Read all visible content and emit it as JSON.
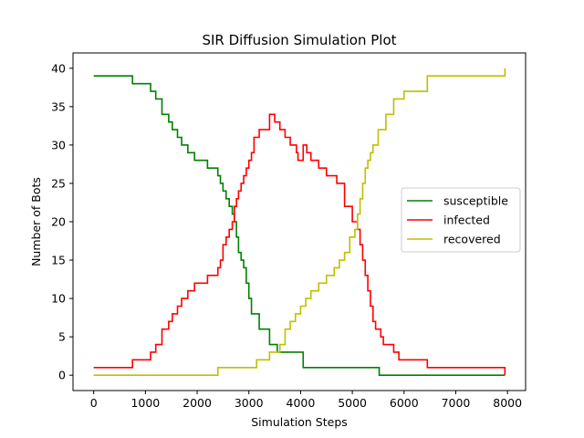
{
  "chart_data": {
    "type": "line",
    "title": "SIR Diffusion Simulation Plot",
    "xlabel": "Simulation Steps",
    "ylabel": "Number of Bots",
    "xlim": [
      -400,
      8350
    ],
    "ylim": [
      -2,
      42
    ],
    "xticks": [
      0,
      1000,
      2000,
      3000,
      4000,
      5000,
      6000,
      7000,
      8000
    ],
    "yticks": [
      0,
      5,
      10,
      15,
      20,
      25,
      30,
      35,
      40
    ],
    "legend_position": "center-right",
    "grid": false,
    "step_style": "post",
    "series": [
      {
        "name": "susceptible",
        "color": "#008000",
        "x": [
          0,
          750,
          1100,
          1200,
          1320,
          1450,
          1520,
          1620,
          1700,
          1820,
          1950,
          2200,
          2400,
          2450,
          2500,
          2560,
          2620,
          2680,
          2720,
          2760,
          2800,
          2850,
          2900,
          2950,
          3000,
          3050,
          3200,
          3400,
          3550,
          4050,
          5520,
          6000,
          7950
        ],
        "y": [
          39,
          38,
          37,
          36,
          34,
          33,
          32,
          31,
          30,
          29,
          28,
          27,
          26,
          25,
          24,
          23,
          22,
          21,
          20,
          18,
          16,
          15,
          14,
          12,
          10,
          8,
          6,
          4,
          3,
          1,
          0,
          0,
          0
        ]
      },
      {
        "name": "infected",
        "color": "#ff0000",
        "x": [
          0,
          750,
          1100,
          1200,
          1320,
          1450,
          1520,
          1620,
          1700,
          1820,
          1950,
          2200,
          2400,
          2450,
          2500,
          2560,
          2620,
          2680,
          2720,
          2760,
          2800,
          2850,
          2900,
          2950,
          3000,
          3050,
          3100,
          3200,
          3400,
          3500,
          3600,
          3700,
          3800,
          3920,
          3950,
          4050,
          4120,
          4200,
          4350,
          4500,
          4700,
          4850,
          5000,
          5100,
          5150,
          5200,
          5250,
          5300,
          5350,
          5400,
          5450,
          5550,
          5600,
          5800,
          5900,
          6450,
          7950
        ],
        "y": [
          1,
          2,
          3,
          4,
          6,
          7,
          8,
          9,
          10,
          11,
          12,
          13,
          14,
          15,
          17,
          18,
          19,
          20,
          22,
          23,
          24,
          25,
          26,
          27,
          28,
          29,
          31,
          32,
          34,
          33,
          32,
          31,
          30,
          29,
          28,
          30,
          29,
          28,
          27,
          26,
          25,
          22,
          20,
          19,
          17,
          15,
          13,
          11,
          9,
          7,
          6,
          5,
          4,
          3,
          2,
          1,
          0
        ]
      },
      {
        "name": "recovered",
        "color": "#bfbf00",
        "x": [
          0,
          2400,
          3150,
          3400,
          3600,
          3700,
          3800,
          3900,
          4000,
          4100,
          4200,
          4350,
          4500,
          4650,
          4750,
          4850,
          4950,
          5050,
          5100,
          5150,
          5200,
          5250,
          5300,
          5350,
          5400,
          5500,
          5650,
          5800,
          6000,
          6450,
          7950
        ],
        "y": [
          0,
          1,
          2,
          3,
          4,
          6,
          7,
          8,
          9,
          10,
          11,
          12,
          13,
          14,
          15,
          16,
          18,
          19,
          21,
          23,
          25,
          27,
          28,
          29,
          30,
          32,
          34,
          36,
          37,
          39,
          40
        ]
      }
    ]
  }
}
